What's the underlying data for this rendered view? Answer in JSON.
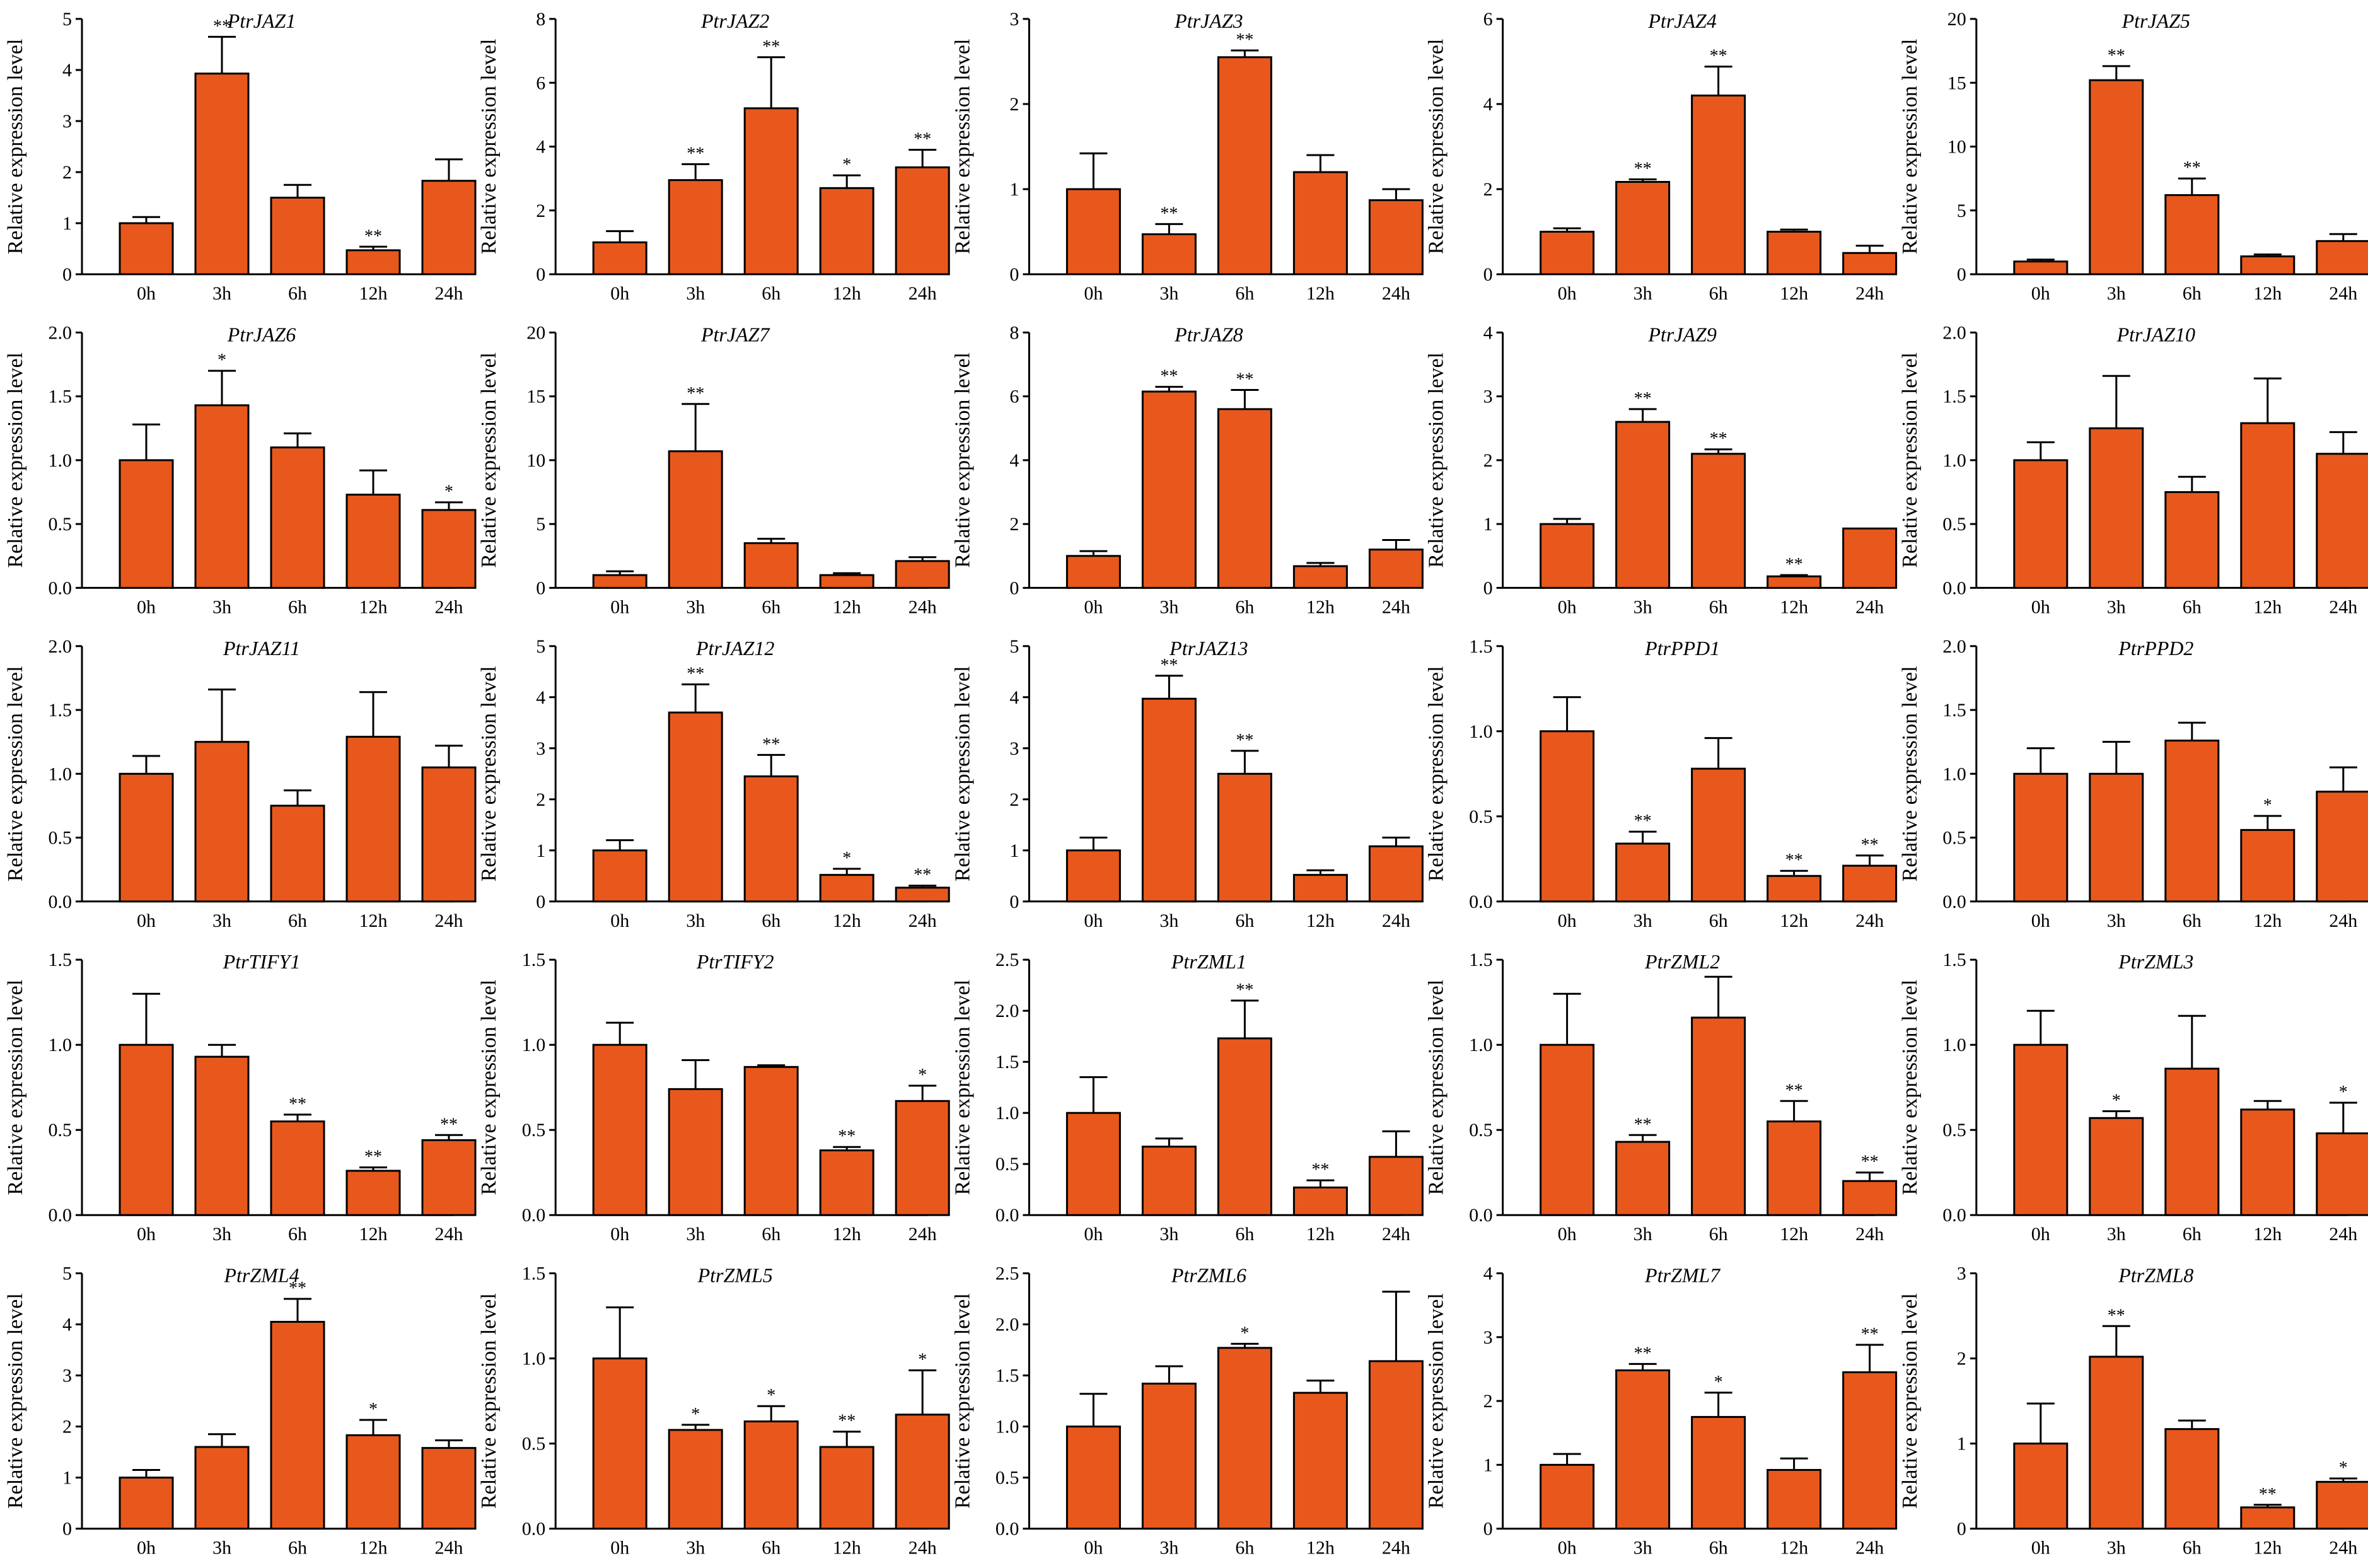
{
  "colors": {
    "bar": "#e8581c",
    "stroke": "#000000"
  },
  "chart_data": [
    {
      "type": "bar",
      "title": "PtrJAZ1",
      "ylabel": "Relative expression level",
      "categories": [
        "0h",
        "3h",
        "6h",
        "12h",
        "24h"
      ],
      "values": [
        1.0,
        3.93,
        1.5,
        0.47,
        1.83
      ],
      "errors": [
        0.12,
        0.72,
        0.25,
        0.07,
        0.42
      ],
      "significance": [
        "",
        "**",
        "",
        "**",
        ""
      ],
      "ylim": [
        0,
        5
      ],
      "yticks": [
        "0",
        "1",
        "2",
        "3",
        "4",
        "5"
      ]
    },
    {
      "type": "bar",
      "title": "PtrJAZ2",
      "ylabel": "Relative expression level",
      "categories": [
        "0h",
        "3h",
        "6h",
        "12h",
        "24h"
      ],
      "values": [
        1.0,
        2.95,
        5.2,
        2.7,
        3.35
      ],
      "errors": [
        0.35,
        0.5,
        1.6,
        0.4,
        0.55
      ],
      "significance": [
        "",
        "**",
        "**",
        "*",
        "**"
      ],
      "ylim": [
        0,
        8
      ],
      "yticks": [
        "0",
        "2",
        "4",
        "6",
        "8"
      ]
    },
    {
      "type": "bar",
      "title": "PtrJAZ3",
      "ylabel": "Relative expression level",
      "categories": [
        "0h",
        "3h",
        "6h",
        "12h",
        "24h"
      ],
      "values": [
        1.0,
        0.47,
        2.55,
        1.2,
        0.87
      ],
      "errors": [
        0.42,
        0.12,
        0.08,
        0.2,
        0.13
      ],
      "significance": [
        "",
        "**",
        "**",
        "",
        ""
      ],
      "ylim": [
        0,
        3
      ],
      "yticks": [
        "0",
        "1",
        "2",
        "3"
      ]
    },
    {
      "type": "bar",
      "title": "PtrJAZ4",
      "ylabel": "Relative expression level",
      "categories": [
        "0h",
        "3h",
        "6h",
        "12h",
        "24h"
      ],
      "values": [
        1.0,
        2.17,
        4.2,
        1.0,
        0.5
      ],
      "errors": [
        0.08,
        0.06,
        0.68,
        0.05,
        0.17
      ],
      "significance": [
        "",
        "**",
        "**",
        "",
        ""
      ],
      "ylim": [
        0,
        6
      ],
      "yticks": [
        "0",
        "2",
        "4",
        "6"
      ]
    },
    {
      "type": "bar",
      "title": "PtrJAZ5",
      "ylabel": "Relative expression level",
      "categories": [
        "0h",
        "3h",
        "6h",
        "12h",
        "24h"
      ],
      "values": [
        1.0,
        15.2,
        6.2,
        1.4,
        2.6
      ],
      "errors": [
        0.15,
        1.1,
        1.3,
        0.15,
        0.55
      ],
      "significance": [
        "",
        "**",
        "**",
        "",
        ""
      ],
      "ylim": [
        0,
        20
      ],
      "yticks": [
        "0",
        "5",
        "10",
        "15",
        "20"
      ]
    },
    {
      "type": "bar",
      "title": "PtrJAZ6",
      "ylabel": "Relative expression level",
      "categories": [
        "0h",
        "3h",
        "6h",
        "12h",
        "24h"
      ],
      "values": [
        1.0,
        1.43,
        1.1,
        0.73,
        0.61
      ],
      "errors": [
        0.28,
        0.27,
        0.11,
        0.19,
        0.06
      ],
      "significance": [
        "",
        "*",
        "",
        "",
        "*"
      ],
      "ylim": [
        0,
        2.0
      ],
      "yticks": [
        "0.0",
        "0.5",
        "1.0",
        "1.5",
        "2.0"
      ]
    },
    {
      "type": "bar",
      "title": "PtrJAZ7",
      "ylabel": "Relative expression level",
      "categories": [
        "0h",
        "3h",
        "6h",
        "12h",
        "24h"
      ],
      "values": [
        1.0,
        10.7,
        3.5,
        1.0,
        2.1
      ],
      "errors": [
        0.3,
        3.7,
        0.35,
        0.15,
        0.3
      ],
      "significance": [
        "",
        "**",
        "",
        "",
        ""
      ],
      "ylim": [
        0,
        20
      ],
      "yticks": [
        "0",
        "5",
        "10",
        "15",
        "20"
      ]
    },
    {
      "type": "bar",
      "title": "PtrJAZ8",
      "ylabel": "Relative expression level",
      "categories": [
        "0h",
        "3h",
        "6h",
        "12h",
        "24h"
      ],
      "values": [
        1.0,
        6.15,
        5.6,
        0.68,
        1.2
      ],
      "errors": [
        0.15,
        0.15,
        0.6,
        0.1,
        0.3
      ],
      "significance": [
        "",
        "**",
        "**",
        "",
        ""
      ],
      "ylim": [
        0,
        8
      ],
      "yticks": [
        "0",
        "2",
        "4",
        "6",
        "8"
      ]
    },
    {
      "type": "bar",
      "title": "PtrJAZ9",
      "ylabel": "Relative expression level",
      "categories": [
        "0h",
        "3h",
        "6h",
        "12h",
        "24h"
      ],
      "values": [
        1.0,
        2.6,
        2.1,
        0.18,
        0.93
      ],
      "errors": [
        0.08,
        0.2,
        0.07,
        0.02,
        0.0
      ],
      "significance": [
        "",
        "**",
        "**",
        "**",
        ""
      ],
      "ylim": [
        0,
        4
      ],
      "yticks": [
        "0",
        "1",
        "2",
        "3",
        "4"
      ]
    },
    {
      "type": "bar",
      "title": "PtrJAZ10",
      "ylabel": "Relative expression level",
      "categories": [
        "0h",
        "3h",
        "6h",
        "12h",
        "24h"
      ],
      "values": [
        1.0,
        1.25,
        0.75,
        1.29,
        1.05
      ],
      "errors": [
        0.14,
        0.41,
        0.12,
        0.35,
        0.17
      ],
      "significance": [
        "",
        "",
        "",
        "",
        ""
      ],
      "ylim": [
        0,
        2.0
      ],
      "yticks": [
        "0.0",
        "0.5",
        "1.0",
        "1.5",
        "2.0"
      ]
    },
    {
      "type": "bar",
      "title": "PtrJAZ11",
      "ylabel": "Relative expression level",
      "categories": [
        "0h",
        "3h",
        "6h",
        "12h",
        "24h"
      ],
      "values": [
        1.0,
        1.25,
        0.75,
        1.29,
        1.05
      ],
      "errors": [
        0.14,
        0.41,
        0.12,
        0.35,
        0.17
      ],
      "significance": [
        "",
        "",
        "",
        "",
        ""
      ],
      "ylim": [
        0,
        2.0
      ],
      "yticks": [
        "0.0",
        "0.5",
        "1.0",
        "1.5",
        "2.0"
      ]
    },
    {
      "type": "bar",
      "title": "PtrJAZ12",
      "ylabel": "Relative expression level",
      "categories": [
        "0h",
        "3h",
        "6h",
        "12h",
        "24h"
      ],
      "values": [
        1.0,
        3.7,
        2.45,
        0.52,
        0.27
      ],
      "errors": [
        0.2,
        0.55,
        0.42,
        0.12,
        0.04
      ],
      "significance": [
        "",
        "**",
        "**",
        "*",
        "**"
      ],
      "ylim": [
        0,
        5
      ],
      "yticks": [
        "0",
        "1",
        "2",
        "3",
        "4",
        "5"
      ]
    },
    {
      "type": "bar",
      "title": "PtrJAZ13",
      "ylabel": "Relative expression level",
      "categories": [
        "0h",
        "3h",
        "6h",
        "12h",
        "24h"
      ],
      "values": [
        1.0,
        3.97,
        2.5,
        0.52,
        1.08
      ],
      "errors": [
        0.25,
        0.45,
        0.45,
        0.09,
        0.17
      ],
      "significance": [
        "",
        "**",
        "**",
        "",
        ""
      ],
      "ylim": [
        0,
        5
      ],
      "yticks": [
        "0",
        "1",
        "2",
        "3",
        "4",
        "5"
      ]
    },
    {
      "type": "bar",
      "title": "PtrPPD1",
      "ylabel": "Relative expression level",
      "categories": [
        "0h",
        "3h",
        "6h",
        "12h",
        "24h"
      ],
      "values": [
        1.0,
        0.34,
        0.78,
        0.15,
        0.21
      ],
      "errors": [
        0.2,
        0.07,
        0.18,
        0.03,
        0.06
      ],
      "significance": [
        "",
        "**",
        "",
        "**",
        "**"
      ],
      "ylim": [
        0,
        1.5
      ],
      "yticks": [
        "0.0",
        "0.5",
        "1.0",
        "1.5"
      ]
    },
    {
      "type": "bar",
      "title": "PtrPPD2",
      "ylabel": "Relative expression level",
      "categories": [
        "0h",
        "3h",
        "6h",
        "12h",
        "24h"
      ],
      "values": [
        1.0,
        1.0,
        1.26,
        0.56,
        0.86
      ],
      "errors": [
        0.2,
        0.25,
        0.14,
        0.11,
        0.19
      ],
      "significance": [
        "",
        "",
        "",
        "*",
        ""
      ],
      "ylim": [
        0,
        2.0
      ],
      "yticks": [
        "0.0",
        "0.5",
        "1.0",
        "1.5",
        "2.0"
      ]
    },
    {
      "type": "bar",
      "title": "PtrTIFY1",
      "ylabel": "Relative expression level",
      "categories": [
        "0h",
        "3h",
        "6h",
        "12h",
        "24h"
      ],
      "values": [
        1.0,
        0.93,
        0.55,
        0.26,
        0.44
      ],
      "errors": [
        0.3,
        0.07,
        0.04,
        0.02,
        0.03
      ],
      "significance": [
        "",
        "",
        "**",
        "**",
        "**"
      ],
      "ylim": [
        0,
        1.5
      ],
      "yticks": [
        "0.0",
        "0.5",
        "1.0",
        "1.5"
      ]
    },
    {
      "type": "bar",
      "title": "PtrTIFY2",
      "ylabel": "Relative expression level",
      "categories": [
        "0h",
        "3h",
        "6h",
        "12h",
        "24h"
      ],
      "values": [
        1.0,
        0.74,
        0.87,
        0.38,
        0.67
      ],
      "errors": [
        0.13,
        0.17,
        0.01,
        0.02,
        0.09
      ],
      "significance": [
        "",
        "",
        "",
        "**",
        "*"
      ],
      "ylim": [
        0,
        1.5
      ],
      "yticks": [
        "0.0",
        "0.5",
        "1.0",
        "1.5"
      ]
    },
    {
      "type": "bar",
      "title": "PtrZML1",
      "ylabel": "Relative expression level",
      "categories": [
        "0h",
        "3h",
        "6h",
        "12h",
        "24h"
      ],
      "values": [
        1.0,
        0.67,
        1.73,
        0.27,
        0.57
      ],
      "errors": [
        0.35,
        0.08,
        0.37,
        0.07,
        0.25
      ],
      "significance": [
        "",
        "",
        "**",
        "**",
        ""
      ],
      "ylim": [
        0,
        2.5
      ],
      "yticks": [
        "0.0",
        "0.5",
        "1.0",
        "1.5",
        "2.0",
        "2.5"
      ]
    },
    {
      "type": "bar",
      "title": "PtrZML2",
      "ylabel": "Relative expression level",
      "categories": [
        "0h",
        "3h",
        "6h",
        "12h",
        "24h"
      ],
      "values": [
        1.0,
        0.43,
        1.16,
        0.55,
        0.2
      ],
      "errors": [
        0.3,
        0.04,
        0.24,
        0.12,
        0.05
      ],
      "significance": [
        "",
        "**",
        "",
        "**",
        "**"
      ],
      "ylim": [
        0,
        1.5
      ],
      "yticks": [
        "0.0",
        "0.5",
        "1.0",
        "1.5"
      ]
    },
    {
      "type": "bar",
      "title": "PtrZML3",
      "ylabel": "Relative expression level",
      "categories": [
        "0h",
        "3h",
        "6h",
        "12h",
        "24h"
      ],
      "values": [
        1.0,
        0.57,
        0.86,
        0.62,
        0.48
      ],
      "errors": [
        0.2,
        0.04,
        0.31,
        0.05,
        0.18
      ],
      "significance": [
        "",
        "*",
        "",
        "",
        "*"
      ],
      "ylim": [
        0,
        1.5
      ],
      "yticks": [
        "0.0",
        "0.5",
        "1.0",
        "1.5"
      ]
    },
    {
      "type": "bar",
      "title": "PtrZML4",
      "ylabel": "Relative expression level",
      "categories": [
        "0h",
        "3h",
        "6h",
        "12h",
        "24h"
      ],
      "values": [
        1.0,
        1.6,
        4.05,
        1.83,
        1.58
      ],
      "errors": [
        0.15,
        0.25,
        0.45,
        0.3,
        0.15
      ],
      "significance": [
        "",
        "",
        "**",
        "*",
        ""
      ],
      "ylim": [
        0,
        5
      ],
      "yticks": [
        "0",
        "1",
        "2",
        "3",
        "4",
        "5"
      ]
    },
    {
      "type": "bar",
      "title": "PtrZML5",
      "ylabel": "Relative expression level",
      "categories": [
        "0h",
        "3h",
        "6h",
        "12h",
        "24h"
      ],
      "values": [
        1.0,
        0.58,
        0.63,
        0.48,
        0.67
      ],
      "errors": [
        0.3,
        0.03,
        0.09,
        0.09,
        0.26
      ],
      "significance": [
        "",
        "*",
        "*",
        "**",
        "*"
      ],
      "ylim": [
        0,
        1.5
      ],
      "yticks": [
        "0.0",
        "0.5",
        "1.0",
        "1.5"
      ]
    },
    {
      "type": "bar",
      "title": "PtrZML6",
      "ylabel": "Relative expression level",
      "categories": [
        "0h",
        "3h",
        "6h",
        "12h",
        "24h"
      ],
      "values": [
        1.0,
        1.42,
        1.77,
        1.33,
        1.64
      ],
      "errors": [
        0.32,
        0.17,
        0.04,
        0.12,
        0.68
      ],
      "significance": [
        "",
        "",
        "*",
        "",
        ""
      ],
      "ylim": [
        0,
        2.5
      ],
      "yticks": [
        "0.0",
        "0.5",
        "1.0",
        "1.5",
        "2.0",
        "2.5"
      ]
    },
    {
      "type": "bar",
      "title": "PtrZML7",
      "ylabel": "Relative expression level",
      "categories": [
        "0h",
        "3h",
        "6h",
        "12h",
        "24h"
      ],
      "values": [
        1.0,
        2.48,
        1.75,
        0.92,
        2.45
      ],
      "errors": [
        0.17,
        0.1,
        0.38,
        0.18,
        0.43
      ],
      "significance": [
        "",
        "**",
        "*",
        "",
        "**"
      ],
      "ylim": [
        0,
        4
      ],
      "yticks": [
        "0",
        "1",
        "2",
        "3",
        "4"
      ]
    },
    {
      "type": "bar",
      "title": "PtrZML8",
      "ylabel": "Relative expression level",
      "categories": [
        "0h",
        "3h",
        "6h",
        "12h",
        "24h"
      ],
      "values": [
        1.0,
        2.02,
        1.17,
        0.25,
        0.55
      ],
      "errors": [
        0.47,
        0.36,
        0.1,
        0.03,
        0.04
      ],
      "significance": [
        "",
        "**",
        "",
        "**",
        "*"
      ],
      "ylim": [
        0,
        3
      ],
      "yticks": [
        "0",
        "1",
        "2",
        "3"
      ]
    }
  ]
}
